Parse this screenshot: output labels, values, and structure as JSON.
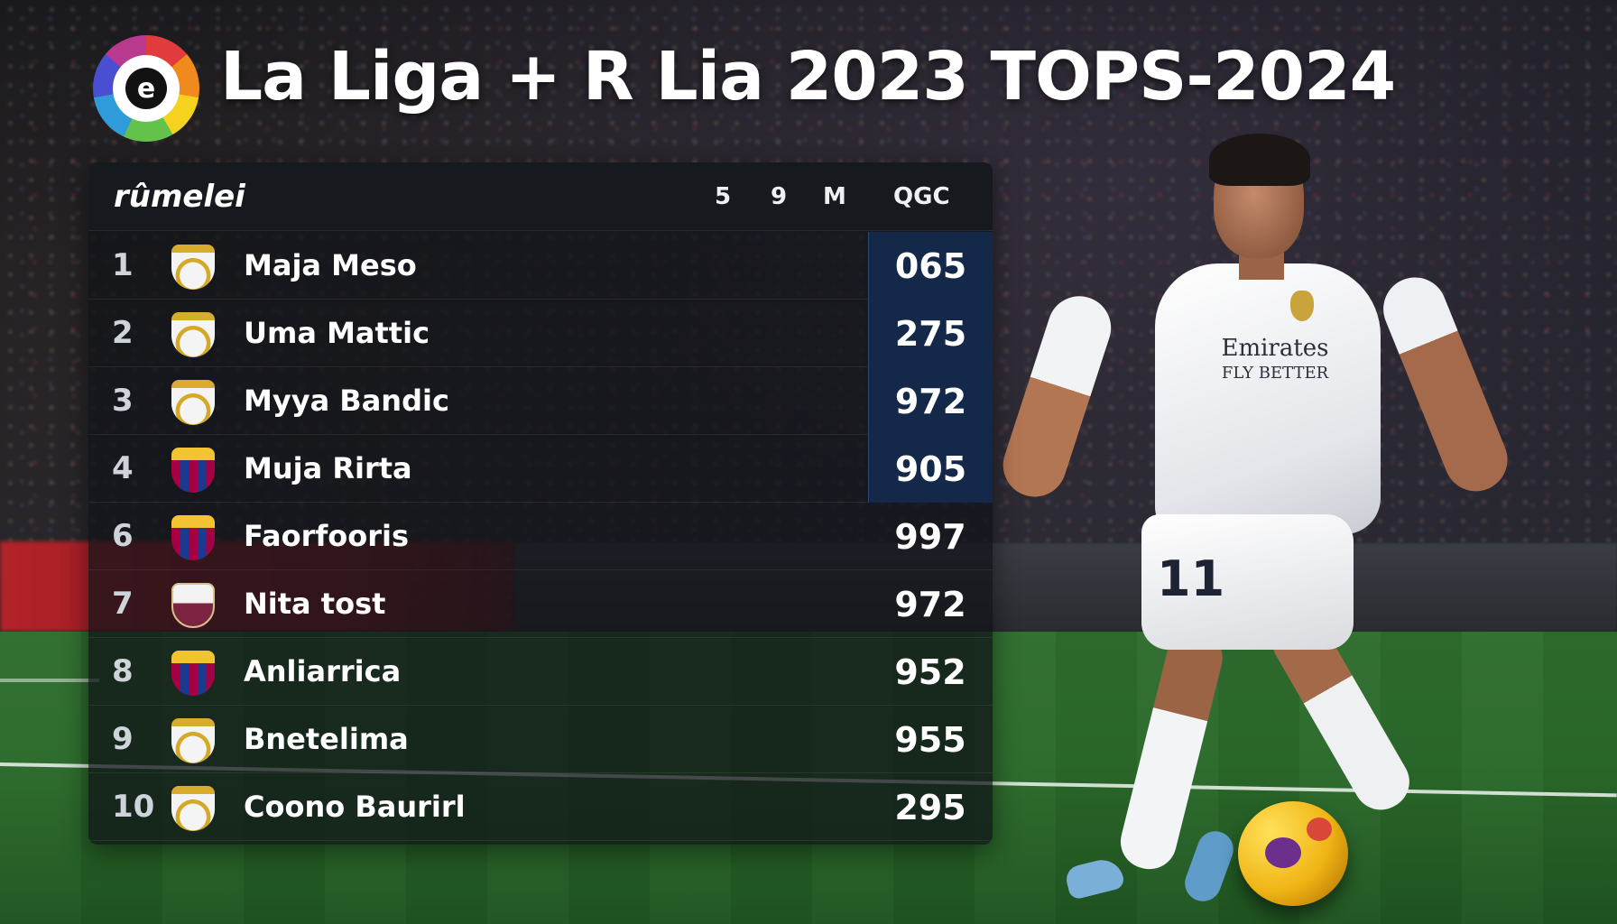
{
  "header": {
    "title": "La Liga + R Lia 2023 TOPS-2024",
    "logo_letter": "e"
  },
  "table": {
    "title": "rûmelei",
    "columns": [
      "5",
      "9",
      "M",
      "QGC"
    ],
    "rows": [
      {
        "rank": "1",
        "crest": "real-madrid-crest",
        "name": "Maja Meso",
        "score": "065",
        "highlight": true
      },
      {
        "rank": "2",
        "crest": "real-madrid-crest",
        "name": "Uma Mattic",
        "score": "275",
        "highlight": true
      },
      {
        "rank": "3",
        "crest": "real-madrid-crest",
        "name": "Myya Bandic",
        "score": "972",
        "highlight": true
      },
      {
        "rank": "4",
        "crest": "barcelona-crest",
        "name": "Muja Rirta",
        "score": "905",
        "highlight": true
      },
      {
        "rank": "6",
        "crest": "barcelona-crest",
        "name": "Faorfooris",
        "score": "997",
        "highlight": false
      },
      {
        "rank": "7",
        "crest": "club-crest",
        "name": "Nita tost",
        "score": "972",
        "highlight": false
      },
      {
        "rank": "8",
        "crest": "barcelona-crest",
        "name": "Anliarrica",
        "score": "952",
        "highlight": false
      },
      {
        "rank": "9",
        "crest": "real-madrid-crest",
        "name": "Bnetelima",
        "score": "955",
        "highlight": false
      },
      {
        "rank": "10",
        "crest": "real-madrid-crest",
        "name": "Coono Baurirl",
        "score": "295",
        "highlight": false
      }
    ]
  },
  "player": {
    "sponsor_line1": "Emirates",
    "sponsor_line2": "FLY BETTER",
    "shorts_number": "11"
  },
  "colors": {
    "panel_bg": "#101318",
    "score_highlight": "#14294a",
    "pitch": "#2b6a2b"
  }
}
